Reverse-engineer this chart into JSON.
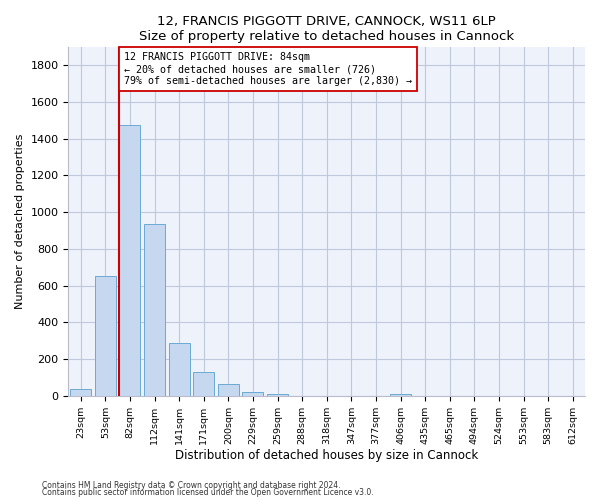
{
  "title": "12, FRANCIS PIGGOTT DRIVE, CANNOCK, WS11 6LP",
  "subtitle": "Size of property relative to detached houses in Cannock",
  "xlabel": "Distribution of detached houses by size in Cannock",
  "ylabel": "Number of detached properties",
  "bar_color": "#c5d8f0",
  "bar_edge_color": "#6aaad4",
  "categories": [
    "23sqm",
    "53sqm",
    "82sqm",
    "112sqm",
    "141sqm",
    "171sqm",
    "200sqm",
    "229sqm",
    "259sqm",
    "288sqm",
    "318sqm",
    "347sqm",
    "377sqm",
    "406sqm",
    "435sqm",
    "465sqm",
    "494sqm",
    "524sqm",
    "553sqm",
    "583sqm",
    "612sqm"
  ],
  "values": [
    40,
    650,
    1475,
    935,
    290,
    128,
    62,
    22,
    12,
    0,
    0,
    0,
    0,
    12,
    0,
    0,
    0,
    0,
    0,
    0,
    0
  ],
  "property_line_index": 2,
  "property_line_color": "#cc0000",
  "annotation_text": "12 FRANCIS PIGGOTT DRIVE: 84sqm\n← 20% of detached houses are smaller (726)\n79% of semi-detached houses are larger (2,830) →",
  "annotation_box_color": "#ffffff",
  "annotation_box_edge": "#cc0000",
  "ylim": [
    0,
    1900
  ],
  "yticks": [
    0,
    200,
    400,
    600,
    800,
    1000,
    1200,
    1400,
    1600,
    1800
  ],
  "footnote1": "Contains HM Land Registry data © Crown copyright and database right 2024.",
  "footnote2": "Contains public sector information licensed under the Open Government Licence v3.0.",
  "background_color": "#eef2fb",
  "grid_color": "#c0c8dc"
}
